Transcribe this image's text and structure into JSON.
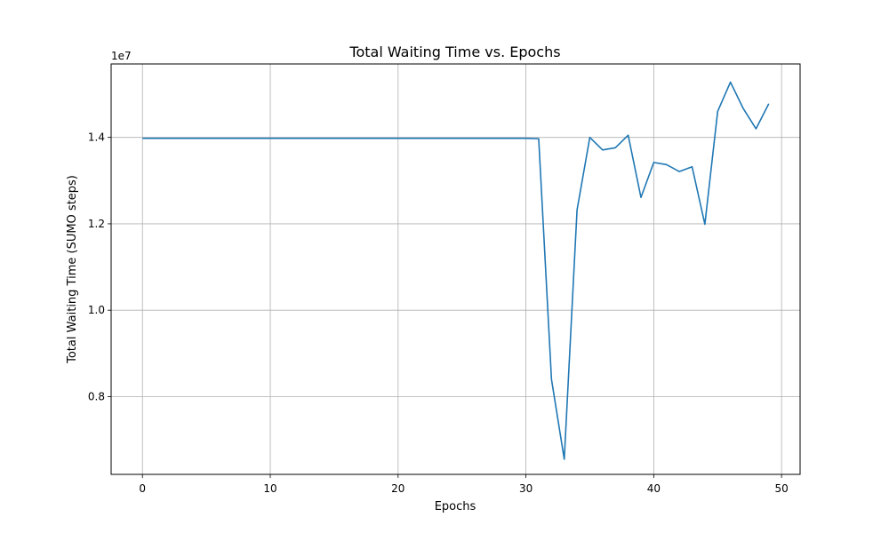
{
  "chart_data": {
    "type": "line",
    "title": "Total Waiting Time vs. Epochs",
    "xlabel": "Epochs",
    "ylabel": "Total Waiting Time (SUMO steps)",
    "y_scale_label": "1e7",
    "xlim": [
      -2.45,
      51.45
    ],
    "ylim": [
      6.2,
      15.7
    ],
    "x_ticks": [
      0,
      10,
      20,
      30,
      40,
      50
    ],
    "y_ticks": [
      0.8,
      1.0,
      1.2,
      1.4
    ],
    "y_tick_labels": [
      "0.8",
      "1.0",
      "1.2",
      "1.4"
    ],
    "grid": true,
    "legend": "none",
    "series_color": "#1f77b4",
    "series": [
      {
        "x": [
          0,
          1,
          2,
          3,
          4,
          5,
          6,
          7,
          8,
          9,
          10,
          11,
          12,
          13,
          14,
          15,
          16,
          17,
          18,
          19,
          20,
          21,
          22,
          23,
          24,
          25,
          26,
          27,
          28,
          29,
          30,
          31,
          32,
          33,
          34,
          35,
          36,
          37,
          38,
          39,
          40,
          41,
          42,
          43,
          44,
          45,
          46,
          47,
          48,
          49
        ],
        "values": [
          13.98,
          13.98,
          13.98,
          13.98,
          13.98,
          13.98,
          13.98,
          13.98,
          13.98,
          13.98,
          13.98,
          13.98,
          13.98,
          13.98,
          13.98,
          13.98,
          13.98,
          13.98,
          13.98,
          13.98,
          13.98,
          13.98,
          13.98,
          13.98,
          13.98,
          13.98,
          13.98,
          13.98,
          13.98,
          13.98,
          13.98,
          13.97,
          8.4,
          6.55,
          12.32,
          14.0,
          13.71,
          13.76,
          14.05,
          12.61,
          13.42,
          13.37,
          13.21,
          13.32,
          11.99,
          14.6,
          15.28,
          14.67,
          14.2,
          14.78
        ]
      }
    ]
  }
}
